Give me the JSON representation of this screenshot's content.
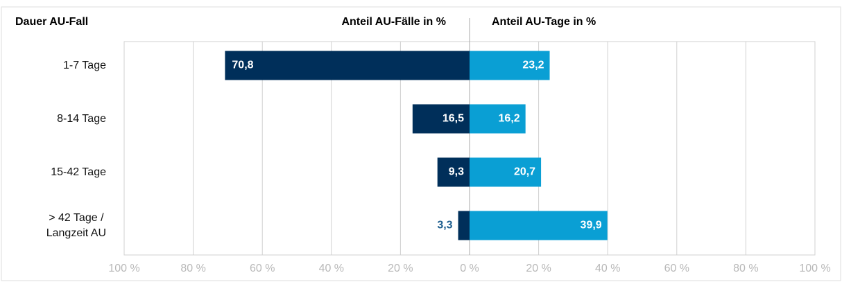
{
  "chart_data": {
    "type": "butterfly-bar",
    "category_header": "Dauer AU-Fall",
    "categories": [
      "1-7 Tage",
      "8-14 Tage",
      "15-42 Tage",
      "> 42 Tage /\nLangzeit AU"
    ],
    "series": [
      {
        "name": "Anteil AU-Fälle in %",
        "color": "#002f5a",
        "direction": "left",
        "values": [
          70.8,
          16.5,
          9.3,
          3.3
        ],
        "value_labels": [
          "70,8",
          "16,5",
          "9,3",
          "3,3"
        ]
      },
      {
        "name": "Anteil AU-Tage in %",
        "color": "#0a9fd4",
        "direction": "right",
        "values": [
          23.2,
          16.2,
          20.7,
          39.9
        ],
        "value_labels": [
          "23,2",
          "16,2",
          "20,7",
          "39,9"
        ]
      }
    ],
    "xlim": [
      -100,
      100
    ],
    "xticks": [
      {
        "value": -100,
        "label": "100 %"
      },
      {
        "value": -80,
        "label": "80 %"
      },
      {
        "value": -60,
        "label": "60 %"
      },
      {
        "value": -40,
        "label": "40 %"
      },
      {
        "value": -20,
        "label": "20 %"
      },
      {
        "value": 0,
        "label": "0 %"
      },
      {
        "value": 20,
        "label": "20 %"
      },
      {
        "value": 40,
        "label": "40 %"
      },
      {
        "value": 60,
        "label": "60 %"
      },
      {
        "value": 80,
        "label": "80 %"
      },
      {
        "value": 100,
        "label": "100 %"
      }
    ],
    "grid": true
  }
}
